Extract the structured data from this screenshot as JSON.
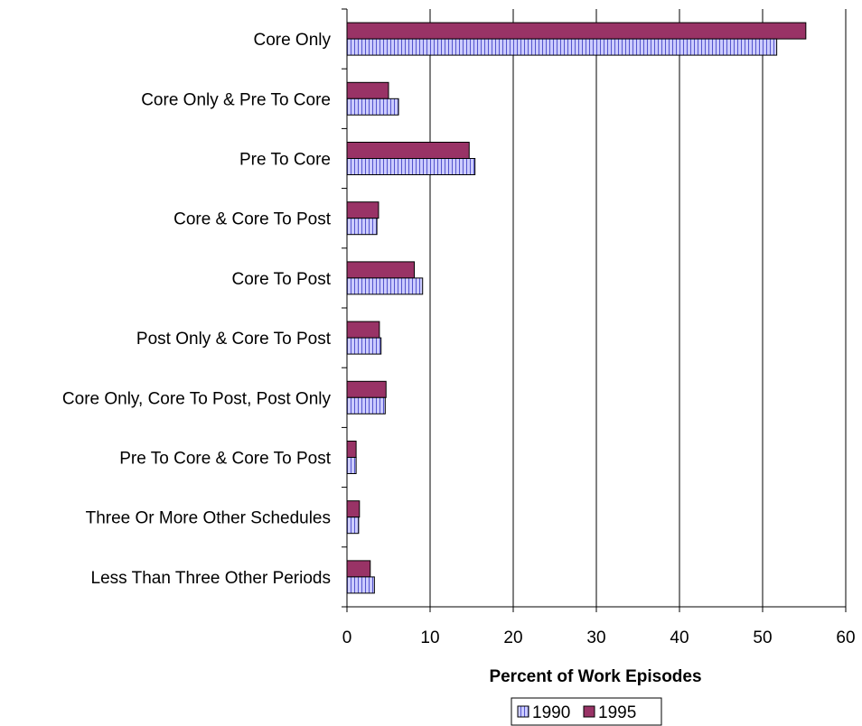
{
  "chart_data": {
    "type": "bar",
    "orientation": "horizontal",
    "categories": [
      "Core Only",
      "Core Only & Pre To Core",
      "Pre To Core",
      "Core & Core To Post",
      "Core To Post",
      "Post Only & Core To Post",
      "Core Only, Core To Post, Post Only",
      "Pre To Core & Core To Post",
      "Three Or More Other Schedules",
      "Less Than Three Other Periods"
    ],
    "series": [
      {
        "name": "1990",
        "color": "#ccccff",
        "pattern": "vertical-stripes",
        "values": [
          51.7,
          6.2,
          15.4,
          3.6,
          9.1,
          4.1,
          4.6,
          1.1,
          1.4,
          3.3
        ]
      },
      {
        "name": "1995",
        "color": "#993366",
        "pattern": "solid",
        "values": [
          55.2,
          5.0,
          14.7,
          3.8,
          8.1,
          3.9,
          4.7,
          1.1,
          1.5,
          2.8
        ]
      }
    ],
    "xlabel": "Percent of Work Episodes",
    "ylabel": "",
    "xlim": [
      0,
      60
    ],
    "xticks": [
      "0",
      "10",
      "20",
      "30",
      "40",
      "50",
      "60"
    ],
    "grid": "vertical",
    "legend": "bottom"
  }
}
